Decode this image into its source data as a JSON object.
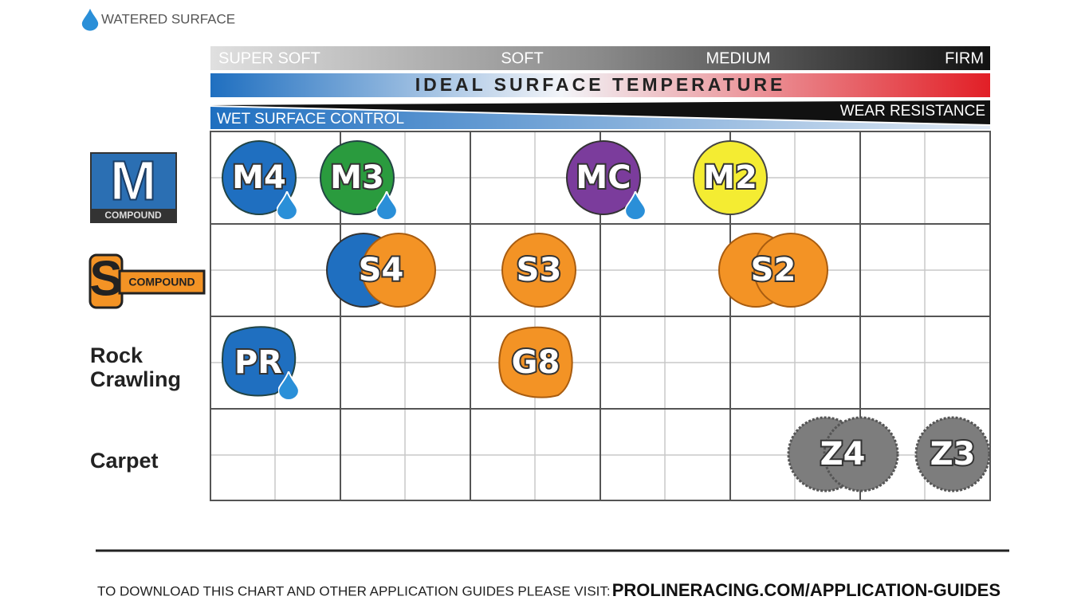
{
  "legend": {
    "label": "WATERED SURFACE"
  },
  "scale": {
    "hardness": [
      "SUPER SOFT",
      "SOFT",
      "MEDIUM",
      "FIRM"
    ],
    "temperature": "IDEAL SURFACE TEMPERATURE",
    "wet": "WET SURFACE CONTROL",
    "wear": "WEAR RESISTANCE"
  },
  "rows": [
    {
      "logo": "M",
      "label": "COMPOUND"
    },
    {
      "logo": "S",
      "label": "COMPOUND"
    },
    {
      "lines": [
        "Rock",
        "Crawling"
      ]
    },
    {
      "lines": [
        "Carpet"
      ]
    }
  ],
  "compounds": [
    {
      "label": "M4"
    },
    {
      "label": "M3"
    },
    {
      "label": "MC"
    },
    {
      "label": "M2"
    },
    {
      "label": "S4"
    },
    {
      "label": "S3"
    },
    {
      "label": "S2"
    },
    {
      "label": "PR"
    },
    {
      "label": "G8"
    },
    {
      "label": "Z4"
    },
    {
      "label": "Z3"
    }
  ],
  "footer": {
    "text": "TO DOWNLOAD THIS CHART AND OTHER APPLICATION GUIDES PLEASE VISIT:",
    "url": "PROLINERACING.COM/APPLICATION-GUIDES"
  }
}
